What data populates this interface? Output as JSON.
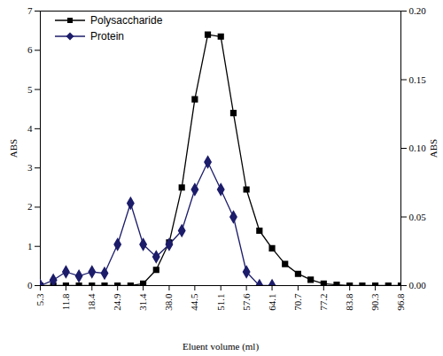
{
  "chart_data": {
    "type": "line",
    "x_label": "Eluent volume (ml)",
    "y_label": "ABS",
    "y2_label": "ABS",
    "x": [
      5.3,
      8.6,
      11.8,
      15.1,
      18.4,
      21.6,
      24.9,
      28.2,
      31.4,
      34.7,
      38.0,
      41.2,
      44.5,
      47.8,
      51.1,
      54.3,
      57.6,
      60.9,
      64.1,
      67.4,
      70.7,
      73.9,
      77.2,
      80.5,
      83.8,
      87.0,
      90.3,
      93.6,
      96.8
    ],
    "series": [
      {
        "name": "Polysaccharide",
        "color": "#000000",
        "marker": "square",
        "values": [
          0,
          0,
          0,
          0,
          0,
          0,
          0,
          0,
          0.05,
          0.4,
          1.1,
          2.5,
          4.75,
          6.4,
          6.35,
          4.4,
          2.45,
          1.4,
          0.95,
          0.55,
          0.3,
          0.15,
          0.05,
          0.02,
          0,
          0,
          0,
          0,
          0
        ]
      },
      {
        "name": "Protein",
        "color": "#1c1c6b",
        "marker": "diamond",
        "axis": "y2",
        "values": [
          0,
          0.004,
          0.01,
          0.007,
          0.01,
          0.009,
          0.03,
          0.06,
          0.03,
          0.021,
          0.03,
          0.04,
          0.07,
          0.09,
          0.07,
          0.05,
          0.01,
          0,
          0,
          null,
          null,
          null,
          null,
          null,
          null,
          null,
          null,
          null,
          null
        ]
      }
    ],
    "xlim": [
      5.3,
      96.8
    ],
    "xticks": [
      5.3,
      11.8,
      18.4,
      24.9,
      31.4,
      {
        "value": 38,
        "label": "38.0"
      },
      44.5,
      51.1,
      57.6,
      64.1,
      70.7,
      77.2,
      83.8,
      90.3,
      96.8
    ],
    "ylim": [
      0,
      7
    ],
    "yticks": [
      0,
      1,
      2,
      3,
      4,
      5,
      6,
      7
    ],
    "y2lim": [
      0,
      0.2
    ],
    "y2ticks": [
      {
        "value": 0,
        "label": "0.00"
      },
      0.05,
      {
        "value": 0.1,
        "label": "0.10"
      },
      0.15,
      {
        "value": 0.2,
        "label": "0.20"
      }
    ],
    "legend": "top-left"
  }
}
